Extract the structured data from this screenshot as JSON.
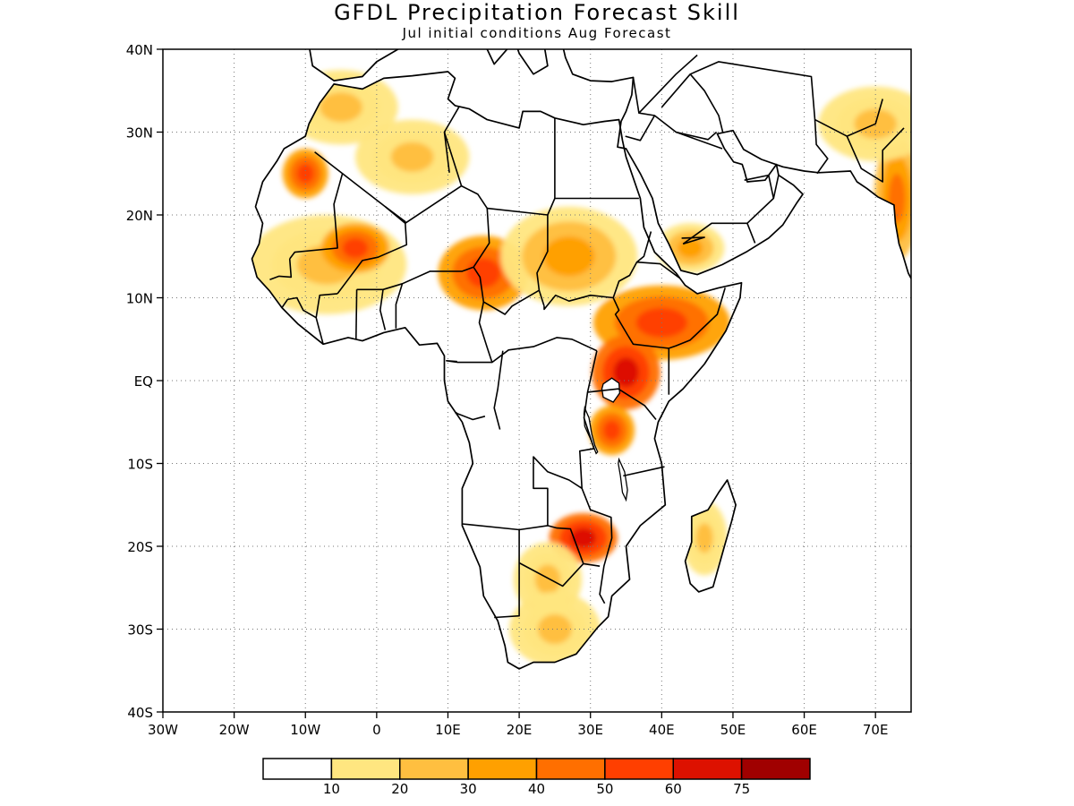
{
  "title": "GFDL Precipitation Forecast Skill",
  "subtitle": "Jul initial conditions  Aug Forecast",
  "lat_labels": [
    {
      "label": "40N",
      "lat": 40
    },
    {
      "label": "30N",
      "lat": 30
    },
    {
      "label": "20N",
      "lat": 20
    },
    {
      "label": "10N",
      "lat": 10
    },
    {
      "label": "EQ",
      "lat": 0
    },
    {
      "label": "10S",
      "lat": -10
    },
    {
      "label": "20S",
      "lat": -20
    },
    {
      "label": "30S",
      "lat": -30
    },
    {
      "label": "40S",
      "lat": -40
    }
  ],
  "lon_labels": [
    {
      "label": "30W",
      "lon": -30
    },
    {
      "label": "20W",
      "lon": -20
    },
    {
      "label": "10W",
      "lon": -10
    },
    {
      "label": "0",
      "lon": 0
    },
    {
      "label": "10E",
      "lon": 10
    },
    {
      "label": "20E",
      "lon": 20
    },
    {
      "label": "30E",
      "lon": 30
    },
    {
      "label": "40E",
      "lon": 40
    },
    {
      "label": "50E",
      "lon": 50
    },
    {
      "label": "60E",
      "lon": 60
    },
    {
      "label": "70E",
      "lon": 70
    }
  ],
  "colorbar": {
    "colors": [
      "#ffffff",
      "#ffe680",
      "#ffbf40",
      "#ffa000",
      "#ff6f00",
      "#ff3f00",
      "#dd1100",
      "#a00000"
    ],
    "labels": [
      "10",
      "20",
      "30",
      "40",
      "50",
      "60",
      "75"
    ]
  },
  "map_data": {
    "extent": {
      "lon_min": -30,
      "lon_max": 75,
      "lat_min": -40,
      "lat_max": 40
    },
    "variable": "precipitation forecast skill",
    "grid": "dotted",
    "skill_regions": [
      {
        "name": "senegal-mali",
        "lon": -7,
        "lat": 14,
        "rx": 7,
        "ry": 4,
        "level": 2
      },
      {
        "name": "mali-core",
        "lon": -3,
        "lat": 16,
        "rx": 3,
        "ry": 2,
        "level": 5
      },
      {
        "name": "mauritania",
        "lon": -10,
        "lat": 25,
        "rx": 2,
        "ry": 2,
        "level": 5
      },
      {
        "name": "algeria-n",
        "lon": -5,
        "lat": 33,
        "rx": 5,
        "ry": 3,
        "level": 2
      },
      {
        "name": "sahara-c",
        "lon": 5,
        "lat": 27,
        "rx": 5,
        "ry": 3,
        "level": 2
      },
      {
        "name": "lake-chad",
        "lon": 15,
        "lat": 13,
        "rx": 4,
        "ry": 3,
        "level": 5
      },
      {
        "name": "sudan",
        "lon": 27,
        "lat": 15,
        "rx": 6,
        "ry": 4,
        "level": 3
      },
      {
        "name": "ethiopia",
        "lon": 40,
        "lat": 7,
        "rx": 6,
        "ry": 3,
        "level": 5
      },
      {
        "name": "yemen",
        "lon": 44,
        "lat": 16,
        "rx": 3,
        "ry": 2,
        "level": 3
      },
      {
        "name": "uganda-kenya",
        "lon": 35,
        "lat": 1,
        "rx": 3,
        "ry": 3,
        "level": 6
      },
      {
        "name": "tanzania",
        "lon": 33,
        "lat": -6,
        "rx": 2,
        "ry": 2,
        "level": 5
      },
      {
        "name": "zimbabwe",
        "lon": 29,
        "lat": -19,
        "rx": 3,
        "ry": 2,
        "level": 6
      },
      {
        "name": "botswana",
        "lon": 24,
        "lat": -24,
        "rx": 3,
        "ry": 3,
        "level": 2
      },
      {
        "name": "south-africa",
        "lon": 25,
        "lat": -30,
        "rx": 4,
        "ry": 3,
        "level": 2
      },
      {
        "name": "madagascar",
        "lon": 46,
        "lat": -19,
        "rx": 2,
        "ry": 3,
        "level": 2
      },
      {
        "name": "india-w",
        "lon": 73,
        "lat": 22,
        "rx": 2,
        "ry": 5,
        "level": 4
      },
      {
        "name": "iran-s",
        "lon": 70,
        "lat": 31,
        "rx": 5,
        "ry": 3,
        "level": 2
      }
    ]
  }
}
